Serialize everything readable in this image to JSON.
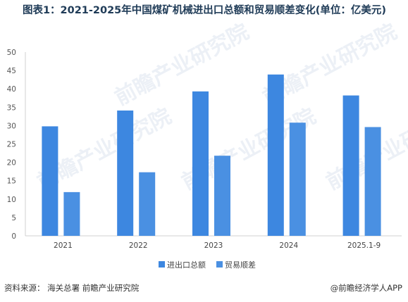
{
  "title": "图表1：2021-2025年中国煤矿机械进出口总额和贸易顺差变化(单位：亿美元)",
  "chart_data": {
    "type": "bar",
    "categories": [
      "2021",
      "2022",
      "2023",
      "2024",
      "2025.1-9"
    ],
    "series": [
      {
        "name": "进出口总额",
        "values": [
          29.8,
          34.1,
          39.3,
          43.9,
          38.2
        ],
        "color": "#3d87e0"
      },
      {
        "name": "贸易顺差",
        "values": [
          11.9,
          17.3,
          21.8,
          30.8,
          29.6
        ],
        "color": "#4a90e2"
      }
    ],
    "ylim": [
      0,
      50
    ],
    "yticks": [
      "0",
      "5",
      "10",
      "15",
      "20",
      "25",
      "30",
      "35",
      "40",
      "45",
      "50"
    ],
    "grid": false,
    "legend_position": "bottom-center"
  },
  "footer": {
    "source": "资料来源：  海关总署  前瞻产业研究院",
    "brand": "@前瞻经济学人APP"
  },
  "watermark": "前瞻产业研究院"
}
